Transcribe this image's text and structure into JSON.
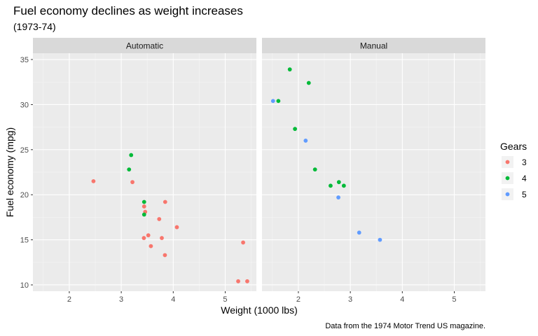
{
  "chart_data": {
    "type": "scatter",
    "title": "Fuel economy declines as weight increases",
    "subtitle": "(1973-74)",
    "xlabel": "Weight (1000 lbs)",
    "ylabel": "Fuel economy (mpg)",
    "caption": "Data from the 1974 Motor Trend US magazine.",
    "xlim": [
      1.3,
      5.6
    ],
    "ylim": [
      9.3,
      35.7
    ],
    "x_ticks": [
      2,
      3,
      4,
      5
    ],
    "y_ticks": [
      10,
      15,
      20,
      25,
      30,
      35
    ],
    "grid": true,
    "legend": {
      "title": "Gears",
      "position": "right",
      "entries": [
        {
          "label": "3",
          "color": "#F8766D"
        },
        {
          "label": "4",
          "color": "#00BA38"
        },
        {
          "label": "5",
          "color": "#619CFF"
        }
      ]
    },
    "facets": [
      {
        "label": "Automatic",
        "points": [
          {
            "x": 2.465,
            "y": 21.5,
            "gear": "3"
          },
          {
            "x": 3.215,
            "y": 21.4,
            "gear": "3"
          },
          {
            "x": 3.44,
            "y": 18.7,
            "gear": "3"
          },
          {
            "x": 3.46,
            "y": 18.1,
            "gear": "3"
          },
          {
            "x": 3.57,
            "y": 14.3,
            "gear": "3"
          },
          {
            "x": 4.07,
            "y": 16.4,
            "gear": "3"
          },
          {
            "x": 3.73,
            "y": 17.3,
            "gear": "3"
          },
          {
            "x": 3.78,
            "y": 15.2,
            "gear": "3"
          },
          {
            "x": 5.25,
            "y": 10.4,
            "gear": "3"
          },
          {
            "x": 5.424,
            "y": 10.4,
            "gear": "3"
          },
          {
            "x": 5.345,
            "y": 14.7,
            "gear": "3"
          },
          {
            "x": 3.52,
            "y": 15.5,
            "gear": "3"
          },
          {
            "x": 3.435,
            "y": 15.2,
            "gear": "3"
          },
          {
            "x": 3.84,
            "y": 13.3,
            "gear": "3"
          },
          {
            "x": 3.845,
            "y": 19.2,
            "gear": "3"
          },
          {
            "x": 3.19,
            "y": 24.4,
            "gear": "4"
          },
          {
            "x": 3.15,
            "y": 22.8,
            "gear": "4"
          },
          {
            "x": 3.44,
            "y": 19.2,
            "gear": "4"
          },
          {
            "x": 3.44,
            "y": 17.8,
            "gear": "4"
          }
        ]
      },
      {
        "label": "Manual",
        "points": [
          {
            "x": 2.62,
            "y": 21.0,
            "gear": "4"
          },
          {
            "x": 2.875,
            "y": 21.0,
            "gear": "4"
          },
          {
            "x": 2.32,
            "y": 22.8,
            "gear": "4"
          },
          {
            "x": 2.2,
            "y": 32.4,
            "gear": "4"
          },
          {
            "x": 1.615,
            "y": 30.4,
            "gear": "4"
          },
          {
            "x": 1.835,
            "y": 33.9,
            "gear": "4"
          },
          {
            "x": 1.935,
            "y": 27.3,
            "gear": "4"
          },
          {
            "x": 2.78,
            "y": 21.4,
            "gear": "4"
          },
          {
            "x": 2.14,
            "y": 26.0,
            "gear": "5"
          },
          {
            "x": 1.513,
            "y": 30.4,
            "gear": "5"
          },
          {
            "x": 3.17,
            "y": 15.8,
            "gear": "5"
          },
          {
            "x": 2.77,
            "y": 19.7,
            "gear": "5"
          },
          {
            "x": 3.57,
            "y": 15.0,
            "gear": "5"
          }
        ]
      }
    ]
  }
}
